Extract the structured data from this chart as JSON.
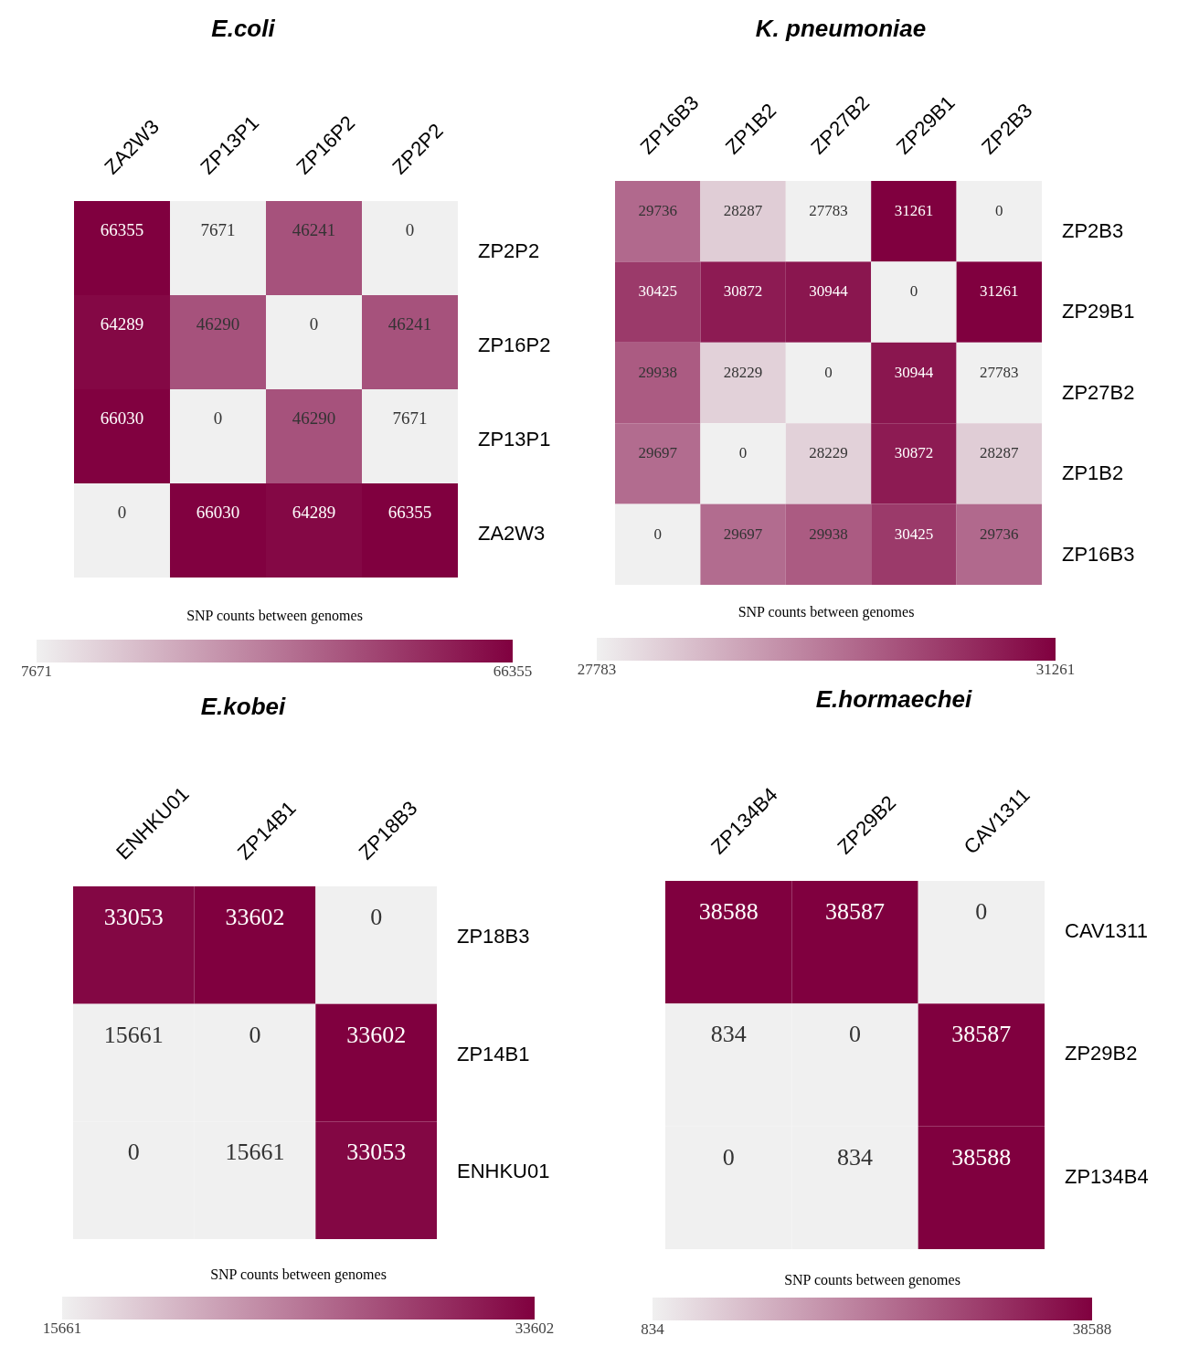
{
  "chart_data": [
    {
      "type": "heatmap",
      "title": "E.coli",
      "clabel": "SNP counts between genomes",
      "categories": [
        "ZA2W3",
        "ZP13P1",
        "ZP16P2",
        "ZP2P2"
      ],
      "y_categories": [
        "ZP2P2",
        "ZP16P2",
        "ZP13P1",
        "ZA2W3"
      ],
      "cells": [
        [
          66355,
          7671,
          46241,
          0
        ],
        [
          64289,
          46290,
          0,
          46241
        ],
        [
          66030,
          0,
          46290,
          7671
        ],
        [
          0,
          66030,
          64289,
          66355
        ]
      ],
      "data_labels": true,
      "clim": [
        7671,
        66355
      ],
      "cticks": [
        7671,
        66355
      ]
    },
    {
      "type": "heatmap",
      "title": "K. pneumoniae",
      "clabel": "SNP counts between genomes",
      "categories": [
        "ZP16B3",
        "ZP1B2",
        "ZP27B2",
        "ZP29B1",
        "ZP2B3"
      ],
      "y_categories": [
        "ZP2B3",
        "ZP29B1",
        "ZP27B2",
        "ZP1B2",
        "ZP16B3"
      ],
      "cells": [
        [
          29736,
          28287,
          27783,
          31261,
          0
        ],
        [
          30425,
          30872,
          30944,
          0,
          31261
        ],
        [
          29938,
          28229,
          0,
          30944,
          27783
        ],
        [
          29697,
          0,
          28229,
          30872,
          28287
        ],
        [
          0,
          29697,
          29938,
          30425,
          29736
        ]
      ],
      "data_labels": true,
      "clim": [
        27783,
        31261
      ],
      "cticks": [
        27783,
        31261
      ]
    },
    {
      "type": "heatmap",
      "title": "E.kobei",
      "clabel": "SNP counts between genomes",
      "categories": [
        "ENHKU01",
        "ZP14B1",
        "ZP18B3"
      ],
      "y_categories": [
        "ZP18B3",
        "ZP14B1",
        "ENHKU01"
      ],
      "cells": [
        [
          33053,
          33602,
          0
        ],
        [
          15661,
          0,
          33602
        ],
        [
          0,
          15661,
          33053
        ]
      ],
      "data_labels": true,
      "clim": [
        15661,
        33602
      ],
      "cticks": [
        15661,
        33602
      ]
    },
    {
      "type": "heatmap",
      "title": "E.hormaechei",
      "clabel": "SNP counts between genomes",
      "categories": [
        "ZP134B4",
        "ZP29B2",
        "CAV1311"
      ],
      "y_categories": [
        "CAV1311",
        "ZP29B2",
        "ZP134B4"
      ],
      "cells": [
        [
          38588,
          38587,
          0
        ],
        [
          834,
          0,
          38587
        ],
        [
          0,
          834,
          38588
        ]
      ],
      "data_labels": true,
      "clim": [
        834,
        38588
      ],
      "cticks": [
        834,
        38588
      ]
    }
  ]
}
